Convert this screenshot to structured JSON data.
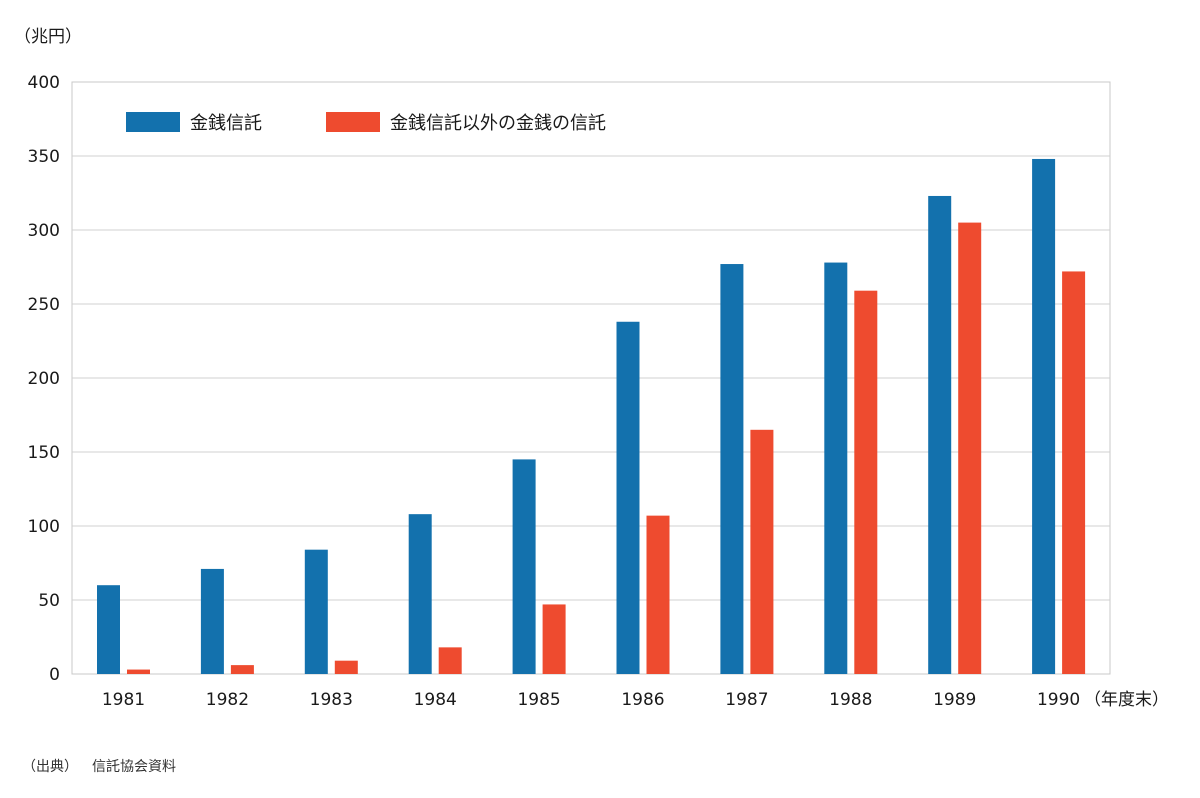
{
  "chart_data": {
    "type": "bar",
    "title": "",
    "ylabel": "（兆円）",
    "xlabel": "（年度末）",
    "ylim": [
      0,
      400
    ],
    "yticks": [
      0,
      50,
      100,
      150,
      200,
      250,
      300,
      350,
      400
    ],
    "categories": [
      "1981",
      "1982",
      "1983",
      "1984",
      "1985",
      "1986",
      "1987",
      "1988",
      "1989",
      "1990"
    ],
    "series": [
      {
        "name": "金銭信託",
        "color": "#1371ad",
        "values": [
          60,
          71,
          84,
          108,
          145,
          238,
          277,
          278,
          323,
          348
        ]
      },
      {
        "name": "金銭信託以外の金銭の信託",
        "color": "#ee4b2f",
        "values": [
          3,
          6,
          9,
          18,
          47,
          107,
          165,
          259,
          305,
          272
        ]
      }
    ],
    "legend": "top-left",
    "grid": true
  },
  "source": {
    "label": "（出典）",
    "text": "信託協会資料"
  }
}
